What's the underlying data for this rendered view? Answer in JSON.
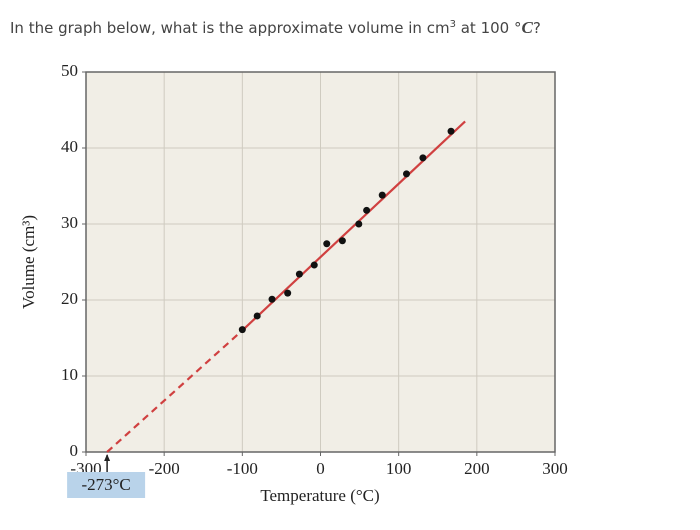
{
  "question": {
    "before": "In the graph below, what is the approximate volume in cm",
    "sup": "3",
    "middle": " at 100 °",
    "var": "C",
    "after": "?"
  },
  "chart_data": {
    "type": "scatter",
    "xlabel": "Temperature (°C)",
    "ylabel": "Volume (cm³)",
    "xlim": [
      -300,
      300
    ],
    "ylim": [
      0,
      50
    ],
    "xticks": [
      -300,
      -200,
      -100,
      0,
      100,
      200,
      300
    ],
    "yticks": [
      0,
      10,
      20,
      30,
      40,
      50
    ],
    "grid": true,
    "points": {
      "color": "#111111",
      "x": [
        -100,
        -81,
        -62,
        -42,
        -27,
        -8,
        8,
        28,
        49,
        59,
        79,
        110,
        131,
        167
      ],
      "y": [
        16.1,
        17.9,
        20.1,
        20.9,
        23.4,
        24.6,
        27.4,
        27.8,
        30,
        31.8,
        33.8,
        36.6,
        38.7,
        42.2
      ]
    },
    "lines": [
      {
        "color": "#d04040",
        "style": "dashed",
        "x": [
          -273,
          -100
        ],
        "y": [
          0,
          16
        ]
      },
      {
        "color": "#d04040",
        "style": "solid",
        "x": [
          -100,
          185
        ],
        "y": [
          16,
          43.5
        ]
      }
    ],
    "annotation": {
      "text": "-273°C",
      "x": -273
    }
  }
}
